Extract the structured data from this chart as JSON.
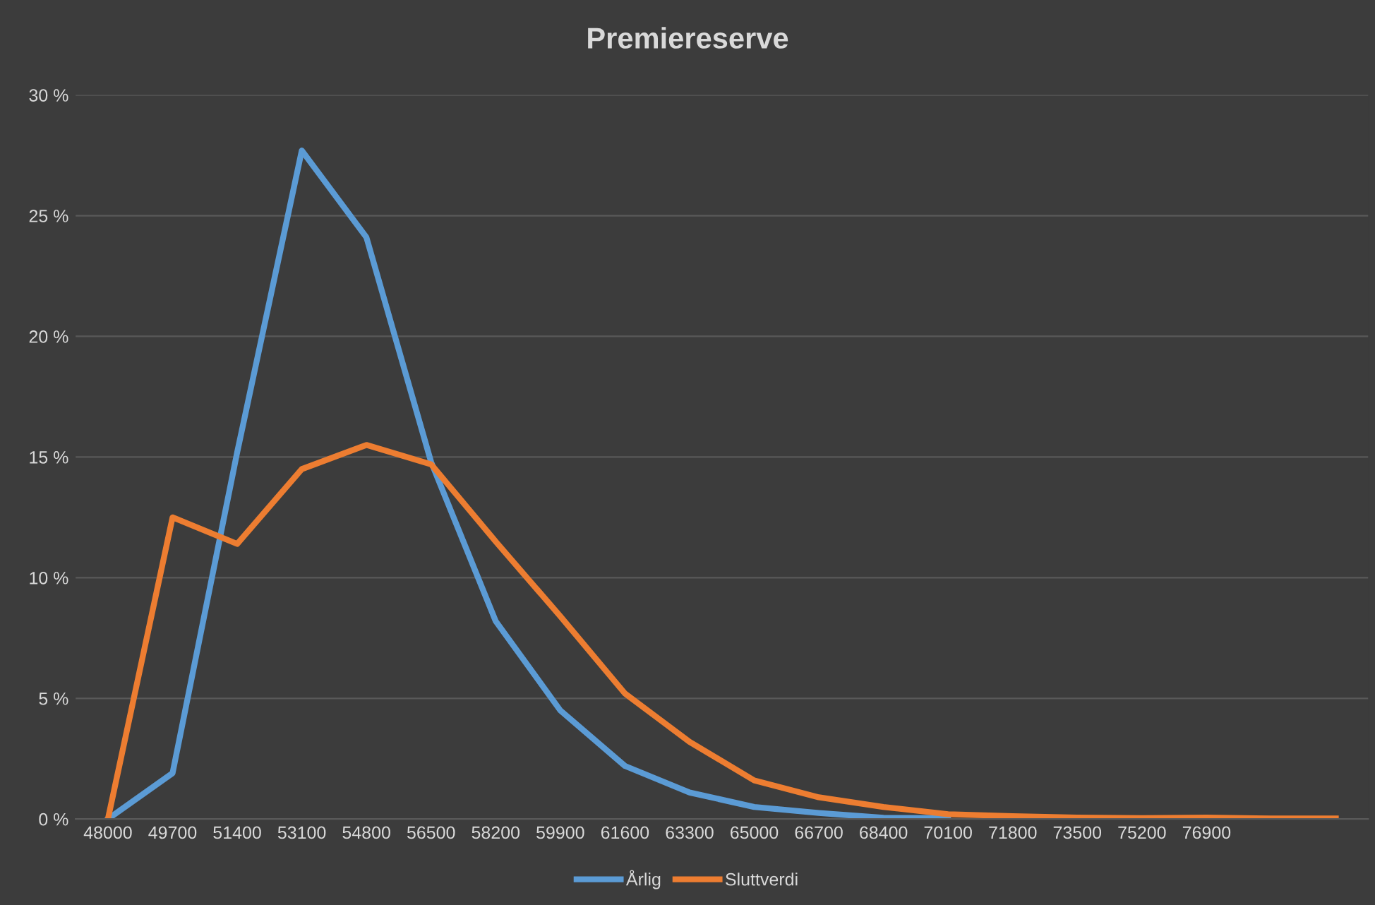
{
  "chart_data": {
    "type": "line",
    "title": "Premiereserve",
    "categories": [
      "48000",
      "49700",
      "51400",
      "53100",
      "54800",
      "56500",
      "58200",
      "59900",
      "61600",
      "63300",
      "65000",
      "66700",
      "68400",
      "70100",
      "71800",
      "73500",
      "75200",
      "76900",
      null,
      null
    ],
    "series": [
      {
        "name": "Årlig",
        "color": "#5b9bd5",
        "values": [
          0,
          1.9,
          15.2,
          27.7,
          24.1,
          14.8,
          8.2,
          4.5,
          2.2,
          1.1,
          0.5,
          0.25,
          0.05,
          0.04,
          null,
          null,
          null,
          null,
          null,
          null
        ]
      },
      {
        "name": "Sluttverdi",
        "color": "#ed7d31",
        "values": [
          0,
          12.5,
          11.4,
          14.5,
          15.5,
          14.7,
          11.5,
          8.4,
          5.2,
          3.2,
          1.6,
          0.9,
          0.5,
          0.2,
          0.12,
          0.06,
          0.04,
          0.06,
          0.02,
          0.02
        ]
      }
    ],
    "ylim": [
      0,
      30
    ],
    "yticks": [
      {
        "value": 0,
        "label": "0 %"
      },
      {
        "value": 5,
        "label": "5 %"
      },
      {
        "value": 10,
        "label": "10 %"
      },
      {
        "value": 15,
        "label": "15 %"
      },
      {
        "value": 20,
        "label": "20 %"
      },
      {
        "value": 25,
        "label": "25 %"
      },
      {
        "value": 30,
        "label": "30 %"
      }
    ],
    "grid": "y",
    "legend": "bottom",
    "marker": "none",
    "line_style": "solid"
  }
}
